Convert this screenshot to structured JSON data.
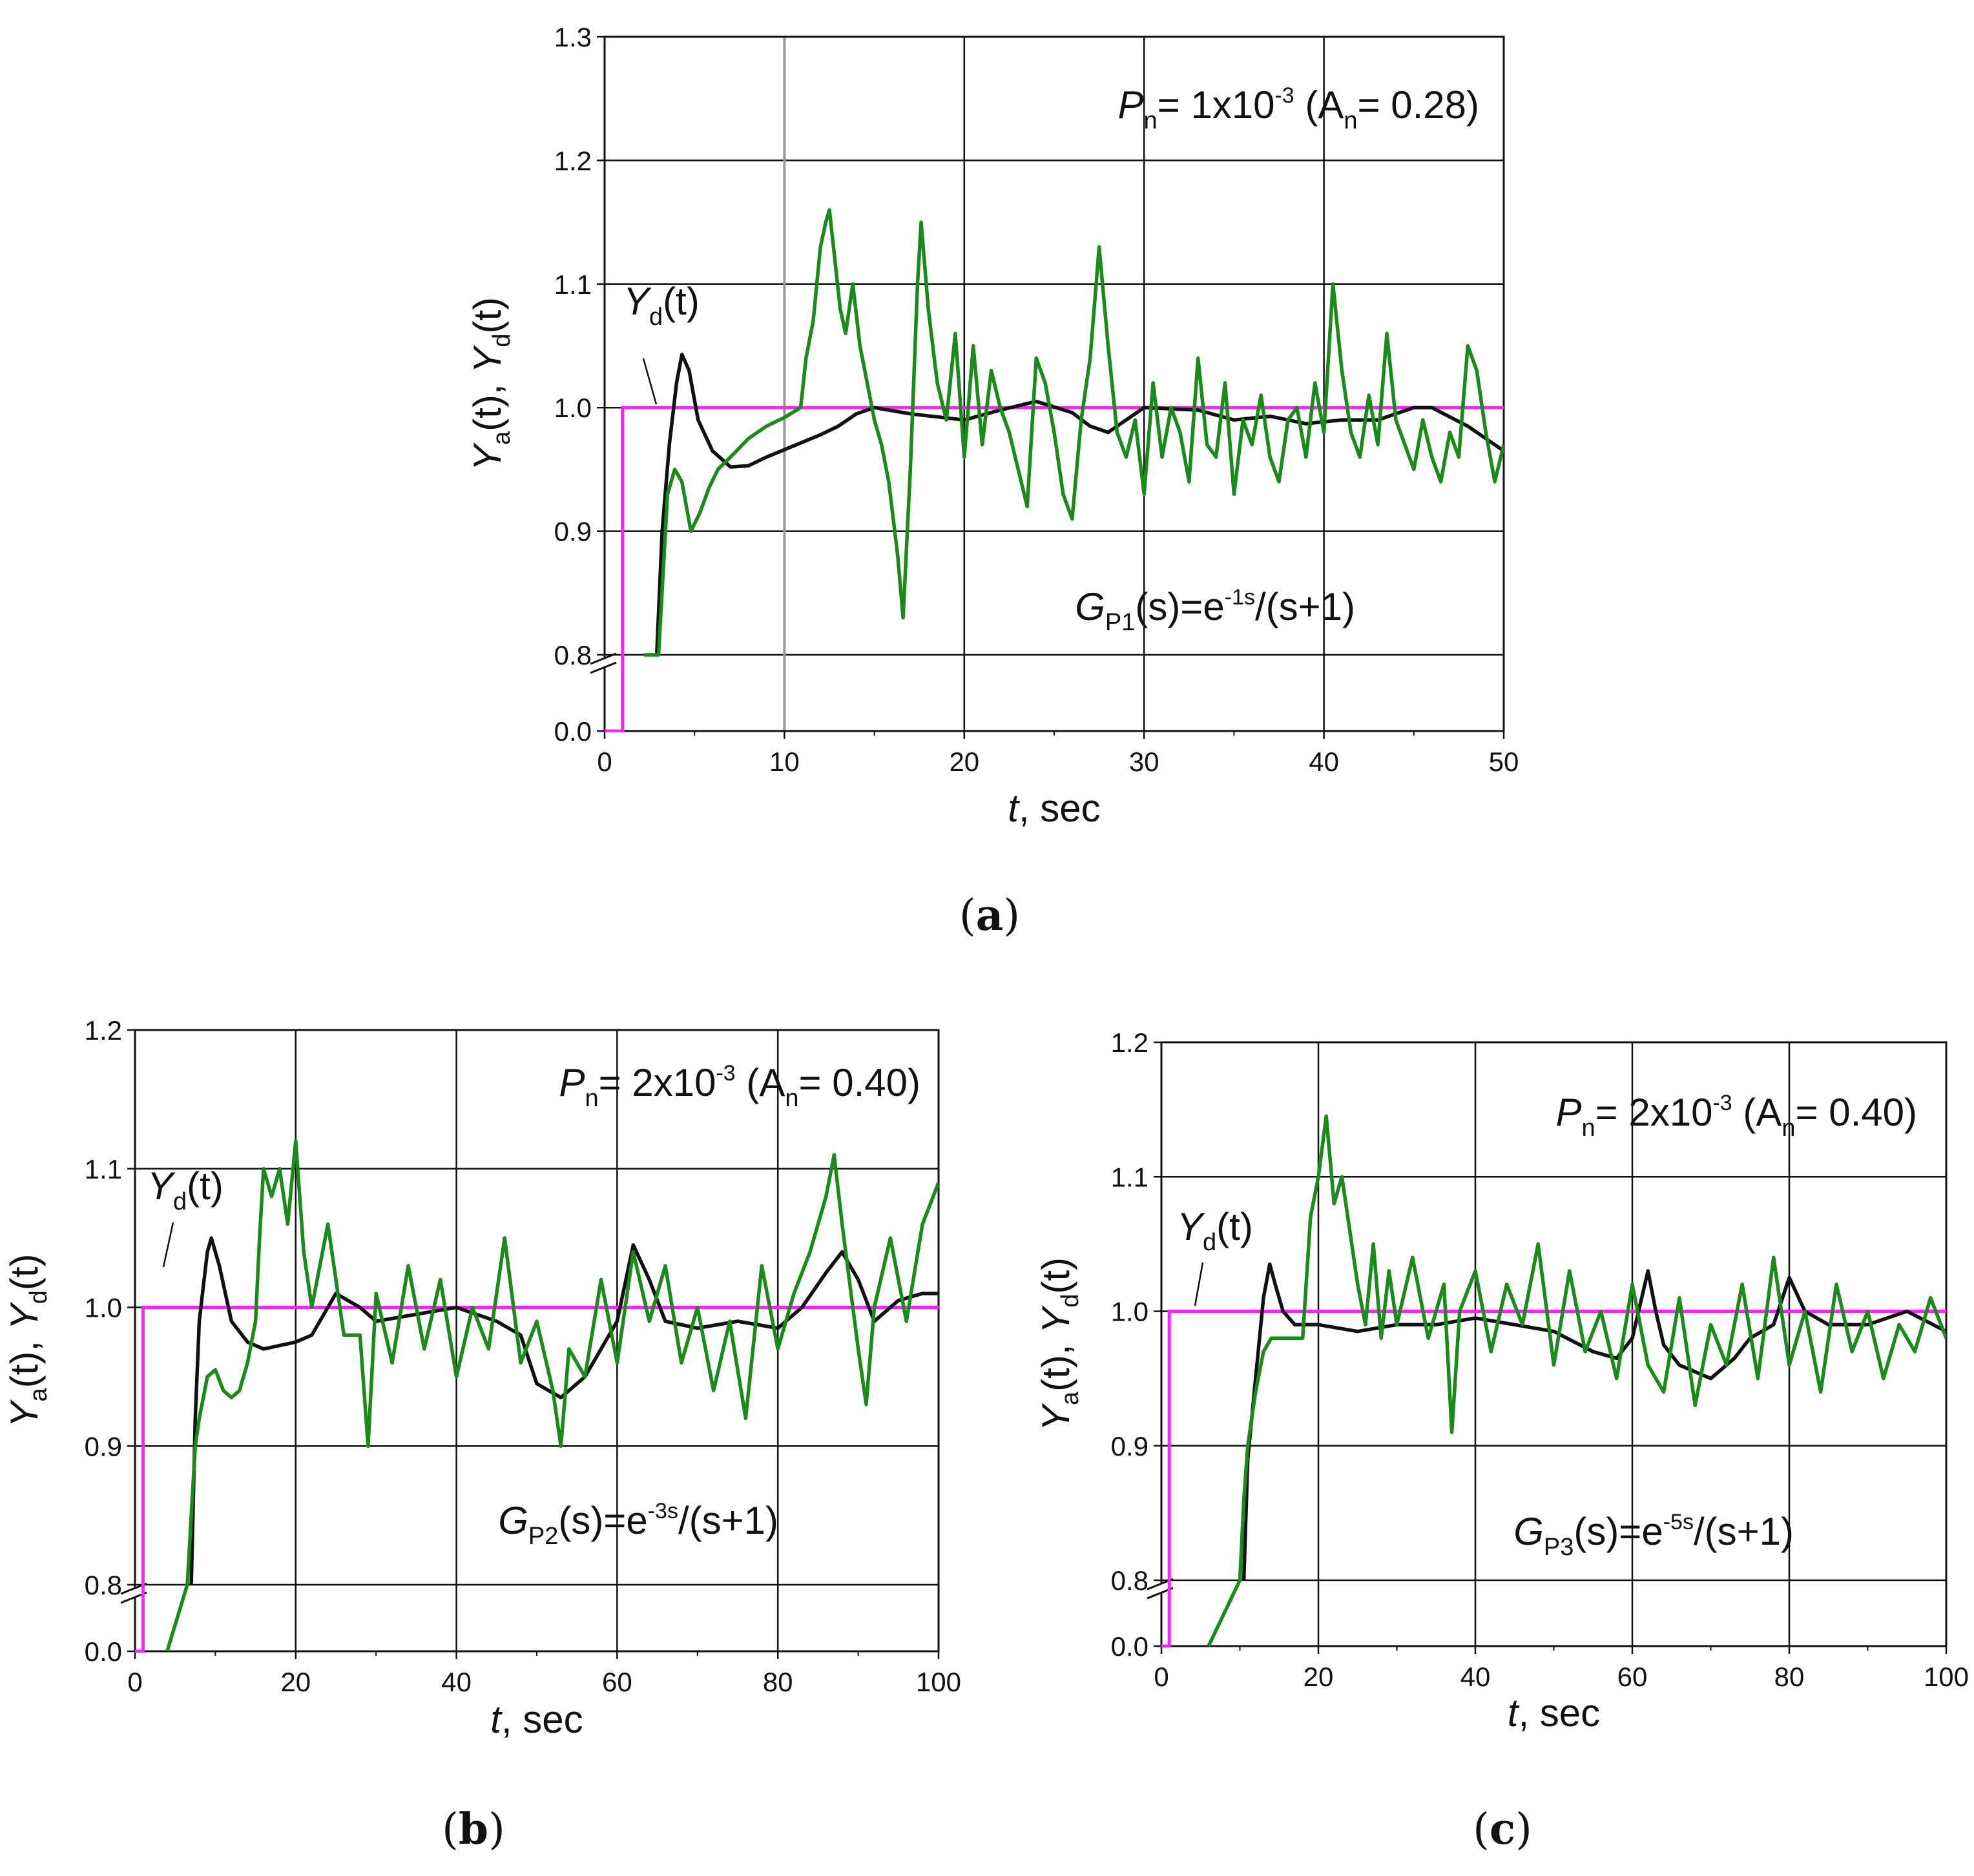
{
  "colors": {
    "Ya": "#1a8a1a",
    "Yd_ref": "#ff22ff",
    "Ya_black": "#111111",
    "grid": "#111111",
    "cursor": "#999999"
  },
  "chart_data": [
    {
      "id": "a",
      "type": "line",
      "caption": {
        "open": "(",
        "label": "a",
        "close": ")"
      },
      "xlabel": {
        "var": "t",
        "rest": ", sec"
      },
      "ylabel": {
        "y1": "Y",
        "s1": "a",
        "p1": "(t), ",
        "y2": "Y",
        "s2": "d",
        "p2": "(t)"
      },
      "xlim": [
        0,
        50
      ],
      "ylim_upper": [
        0.8,
        1.3
      ],
      "ylim_lower": [
        0.0,
        0.05
      ],
      "xticks": [
        "0",
        "10",
        "20",
        "30",
        "40",
        "50"
      ],
      "yticks_upper": [
        "0.8",
        "0.9",
        "1.0",
        "1.1",
        "1.2",
        "1.3"
      ],
      "yticks_lower": [
        "0.0"
      ],
      "vertical_marker_x": 10,
      "annotation_noise": {
        "P": "P",
        "Psub": "n",
        "eq1": "= 1x10",
        "exp": "-3",
        "A": "(A",
        "Asub": "n",
        "eq2": "= 0.28)"
      },
      "annotation_tf": {
        "G": "G",
        "Gsub": "P1",
        "body": "(s)=e",
        "exp": "-1s",
        "tail": "/(s+1)"
      },
      "yd_label": {
        "y": "Y",
        "sub": "d",
        "arg": "(t)"
      },
      "series": [
        {
          "name": "Y_d(t) setpoint",
          "color": "magenta",
          "step_at": 1.0,
          "from": 0.0,
          "to": 1.0
        },
        {
          "name": "Y_a(t) without noise",
          "color": "black",
          "x": [
            2.9,
            3.2,
            3.6,
            4.0,
            4.3,
            4.7,
            5.2,
            6.0,
            7.0,
            8.0,
            9.0,
            10.0,
            11.0,
            12.0,
            13.0,
            14.0,
            15.0,
            17.0,
            20.0,
            22.0,
            24.0,
            26.0,
            27.0,
            28.0,
            30.0,
            33.0,
            35.0,
            37.0,
            39.0,
            41.0,
            43.0,
            45.0,
            46.0,
            48.0,
            50.0
          ],
          "y": [
            0.8,
            0.9,
            0.97,
            1.02,
            1.043,
            1.03,
            0.99,
            0.965,
            0.952,
            0.953,
            0.96,
            0.966,
            0.972,
            0.978,
            0.985,
            0.995,
            1.0,
            0.995,
            0.99,
            0.998,
            1.005,
            0.996,
            0.985,
            0.98,
            1.0,
            0.998,
            0.99,
            0.993,
            0.987,
            0.99,
            0.99,
            1.0,
            1.0,
            0.985,
            0.965
          ]
        },
        {
          "name": "Y_a(t) with noise",
          "color": "green",
          "x": [
            2.2,
            2.6,
            3.0,
            3.5,
            3.9,
            4.3,
            4.8,
            5.3,
            5.8,
            6.3,
            7.0,
            8.0,
            9.0,
            10.0,
            10.9,
            11.2,
            11.6,
            12.0,
            12.3,
            12.5,
            12.8,
            13.1,
            13.4,
            13.8,
            14.2,
            14.6,
            15.0,
            15.4,
            15.8,
            16.3,
            16.6,
            17.0,
            17.4,
            17.6,
            18.0,
            18.5,
            19.0,
            19.5,
            20.0,
            20.5,
            21.0,
            21.5,
            22.0,
            22.5,
            23.0,
            23.5,
            24.0,
            24.5,
            25.0,
            25.5,
            26.0,
            26.5,
            27.0,
            27.5,
            28.0,
            28.5,
            29.0,
            29.5,
            30.0,
            30.5,
            31.0,
            31.5,
            32.0,
            32.5,
            33.0,
            33.5,
            34.0,
            34.5,
            35.0,
            35.5,
            36.0,
            36.5,
            37.0,
            37.5,
            38.0,
            38.5,
            39.0,
            39.5,
            40.0,
            40.5,
            41.0,
            41.5,
            42.0,
            42.5,
            43.0,
            43.5,
            44.0,
            44.5,
            45.0,
            45.5,
            46.0,
            46.5,
            47.0,
            47.5,
            48.0,
            48.5,
            49.0,
            49.5,
            50.0
          ],
          "y": [
            0.8,
            0.8,
            0.8,
            0.93,
            0.95,
            0.94,
            0.9,
            0.915,
            0.935,
            0.95,
            0.96,
            0.975,
            0.985,
            0.992,
            1.0,
            1.04,
            1.07,
            1.13,
            1.15,
            1.16,
            1.12,
            1.08,
            1.06,
            1.1,
            1.05,
            1.02,
            0.99,
            0.97,
            0.94,
            0.88,
            0.83,
            0.95,
            1.1,
            1.15,
            1.08,
            1.02,
            0.99,
            1.06,
            0.96,
            1.05,
            0.97,
            1.03,
            1.0,
            0.98,
            0.95,
            0.92,
            1.04,
            1.02,
            0.98,
            0.93,
            0.91,
            0.99,
            1.04,
            1.13,
            1.05,
            0.98,
            0.96,
            0.99,
            0.93,
            1.02,
            0.96,
            1.0,
            0.98,
            0.94,
            1.04,
            0.97,
            0.96,
            1.02,
            0.93,
            0.99,
            0.97,
            1.01,
            0.96,
            0.94,
            0.99,
            1.0,
            0.96,
            1.02,
            0.98,
            1.1,
            1.03,
            0.98,
            0.96,
            1.01,
            0.97,
            1.06,
            0.99,
            0.97,
            0.95,
            0.99,
            0.96,
            0.94,
            0.98,
            0.96,
            1.05,
            1.03,
            0.98,
            0.94,
            0.97
          ]
        }
      ]
    },
    {
      "id": "b",
      "type": "line",
      "caption": {
        "open": "(",
        "label": "b",
        "close": ")"
      },
      "xlabel": {
        "var": "t",
        "rest": ", sec"
      },
      "ylabel": {
        "y1": "Y",
        "s1": "a",
        "p1": "(t), ",
        "y2": "Y",
        "s2": "d",
        "p2": "(t)"
      },
      "xlim": [
        0,
        100
      ],
      "ylim_upper": [
        0.8,
        1.2
      ],
      "ylim_lower": [
        0.0,
        0.05
      ],
      "xticks": [
        "0",
        "20",
        "40",
        "60",
        "80",
        "100"
      ],
      "yticks_upper": [
        "0.8",
        "0.9",
        "1.0",
        "1.1",
        "1.2"
      ],
      "yticks_lower": [
        "0.0"
      ],
      "annotation_noise": {
        "P": "P",
        "Psub": "n",
        "eq1": "= 2x10",
        "exp": "-3",
        "A": "(A",
        "Asub": "n",
        "eq2": "= 0.40)"
      },
      "annotation_tf": {
        "G": "G",
        "Gsub": "P2",
        "body": "(s)=e",
        "exp": "-3s",
        "tail": "/(s+1)"
      },
      "yd_label": {
        "y": "Y",
        "sub": "d",
        "arg": "(t)"
      },
      "series": [
        {
          "name": "Y_d(t) setpoint",
          "color": "magenta",
          "step_at": 1.0,
          "from": 0.0,
          "to": 1.0
        },
        {
          "name": "Y_a(t) without noise",
          "color": "black",
          "x": [
            7.0,
            7.5,
            8.0,
            9.0,
            9.5,
            10.5,
            12.0,
            14.0,
            16.0,
            20.0,
            22.0,
            25.0,
            28.0,
            30.0,
            35.0,
            40.0,
            45.0,
            48.0,
            50.0,
            53.0,
            56.0,
            60.0,
            62.0,
            64.0,
            66.0,
            70.0,
            75.0,
            80.0,
            83.0,
            86.0,
            88.0,
            90.0,
            92.0,
            95.0,
            98.0,
            100.0
          ],
          "y": [
            0.8,
            0.92,
            0.99,
            1.04,
            1.05,
            1.03,
            0.99,
            0.975,
            0.97,
            0.975,
            0.98,
            1.01,
            1.0,
            0.99,
            0.995,
            1.0,
            0.99,
            0.98,
            0.945,
            0.935,
            0.95,
            0.99,
            1.045,
            1.02,
            0.99,
            0.985,
            0.99,
            0.985,
            1.0,
            1.025,
            1.04,
            1.02,
            0.99,
            1.005,
            1.01,
            1.01
          ]
        },
        {
          "name": "Y_a(t) with noise",
          "color": "green",
          "x": [
            4.0,
            6.5,
            7.0,
            7.5,
            8.0,
            9.0,
            10.0,
            11.0,
            12.0,
            13.0,
            14.0,
            15.0,
            15.5,
            16.0,
            17.0,
            18.0,
            19.0,
            20.0,
            21.0,
            22.0,
            24.0,
            26.0,
            28.0,
            29.0,
            30.0,
            32.0,
            34.0,
            36.0,
            38.0,
            40.0,
            42.0,
            44.0,
            46.0,
            48.0,
            50.0,
            52.0,
            53.0,
            54.0,
            56.0,
            58.0,
            60.0,
            62.0,
            64.0,
            66.0,
            68.0,
            70.0,
            72.0,
            74.0,
            76.0,
            78.0,
            80.0,
            82.0,
            84.0,
            86.0,
            87.0,
            88.0,
            90.0,
            91.0,
            92.0,
            94.0,
            96.0,
            98.0,
            100.0
          ],
          "y": [
            0.0,
            0.8,
            0.85,
            0.9,
            0.92,
            0.95,
            0.955,
            0.94,
            0.935,
            0.94,
            0.96,
            0.99,
            1.05,
            1.1,
            1.08,
            1.1,
            1.06,
            1.12,
            1.04,
            1.0,
            1.06,
            0.98,
            0.98,
            0.9,
            1.01,
            0.96,
            1.03,
            0.97,
            1.02,
            0.95,
            1.0,
            0.97,
            1.05,
            0.96,
            0.99,
            0.94,
            0.9,
            0.97,
            0.95,
            1.02,
            0.96,
            1.04,
            0.99,
            1.03,
            0.96,
            1.0,
            0.94,
            0.99,
            0.92,
            1.03,
            0.97,
            1.01,
            1.04,
            1.08,
            1.11,
            1.06,
            0.97,
            0.93,
            1.0,
            1.05,
            0.99,
            1.06,
            1.09
          ]
        }
      ]
    },
    {
      "id": "c",
      "type": "line",
      "caption": {
        "open": "(",
        "label": "c",
        "close": ")"
      },
      "xlabel": {
        "var": "t",
        "rest": ", sec"
      },
      "ylabel": {
        "y1": "Y",
        "s1": "a",
        "p1": "(t), ",
        "y2": "Y",
        "s2": "d",
        "p2": "(t)"
      },
      "xlim": [
        0,
        100
      ],
      "ylim_upper": [
        0.8,
        1.2
      ],
      "ylim_lower": [
        0.0,
        0.05
      ],
      "xticks": [
        "0",
        "20",
        "40",
        "60",
        "80",
        "100"
      ],
      "yticks_upper": [
        "0.8",
        "0.9",
        "1.0",
        "1.1",
        "1.2"
      ],
      "yticks_lower": [
        "0.0"
      ],
      "annotation_noise": {
        "P": "P",
        "Psub": "n",
        "eq1": "= 2x10",
        "exp": "-3",
        "A": "(A",
        "Asub": "n",
        "eq2": "= 0.40)"
      },
      "annotation_tf": {
        "G": "G",
        "Gsub": "P3",
        "body": "(s)=e",
        "exp": "-5s",
        "tail": "/(s+1)"
      },
      "yd_label": {
        "y": "Y",
        "sub": "d",
        "arg": "(t)"
      },
      "series": [
        {
          "name": "Y_d(t) setpoint",
          "color": "magenta",
          "step_at": 1.0,
          "from": 0.0,
          "to": 1.0
        },
        {
          "name": "Y_a(t) without noise",
          "color": "black",
          "x": [
            10.5,
            11.0,
            12.0,
            13.0,
            13.8,
            14.5,
            15.5,
            17.0,
            20.0,
            25.0,
            30.0,
            35.0,
            40.0,
            45.0,
            50.0,
            55.0,
            58.0,
            60.0,
            62.0,
            63.0,
            64.0,
            66.0,
            70.0,
            73.0,
            75.0,
            78.0,
            80.0,
            82.0,
            85.0,
            90.0,
            95.0,
            100.0
          ],
          "y": [
            0.8,
            0.89,
            0.95,
            1.01,
            1.035,
            1.02,
            1.0,
            0.99,
            0.99,
            0.985,
            0.99,
            0.99,
            0.995,
            0.99,
            0.985,
            0.97,
            0.965,
            0.98,
            1.03,
            1.0,
            0.975,
            0.96,
            0.95,
            0.965,
            0.98,
            0.99,
            1.025,
            1.0,
            0.99,
            0.99,
            1.0,
            0.985
          ]
        },
        {
          "name": "Y_a(t) with noise",
          "color": "green",
          "x": [
            6.0,
            10.0,
            10.5,
            11.0,
            12.0,
            13.0,
            14.0,
            16.0,
            18.0,
            19.0,
            20.0,
            21.0,
            22.0,
            23.0,
            24.0,
            25.0,
            26.0,
            27.0,
            28.0,
            29.0,
            30.0,
            32.0,
            34.0,
            36.0,
            37.0,
            38.0,
            40.0,
            42.0,
            44.0,
            46.0,
            48.0,
            50.0,
            52.0,
            54.0,
            56.0,
            58.0,
            60.0,
            62.0,
            64.0,
            66.0,
            68.0,
            70.0,
            72.0,
            74.0,
            76.0,
            78.0,
            80.0,
            82.0,
            84.0,
            86.0,
            88.0,
            90.0,
            92.0,
            94.0,
            96.0,
            98.0,
            100.0
          ],
          "y": [
            0.0,
            0.8,
            0.86,
            0.9,
            0.94,
            0.97,
            0.98,
            0.98,
            0.98,
            1.07,
            1.1,
            1.145,
            1.08,
            1.1,
            1.06,
            1.02,
            0.99,
            1.05,
            0.98,
            1.03,
            0.99,
            1.04,
            0.98,
            1.02,
            0.91,
            1.0,
            1.03,
            0.97,
            1.02,
            0.99,
            1.05,
            0.96,
            1.03,
            0.97,
            1.0,
            0.95,
            1.02,
            0.96,
            0.94,
            1.01,
            0.93,
            0.99,
            0.96,
            1.02,
            0.95,
            1.04,
            0.96,
            1.0,
            0.94,
            1.02,
            0.97,
            1.0,
            0.95,
            0.99,
            0.97,
            1.01,
            0.98
          ]
        }
      ]
    }
  ]
}
